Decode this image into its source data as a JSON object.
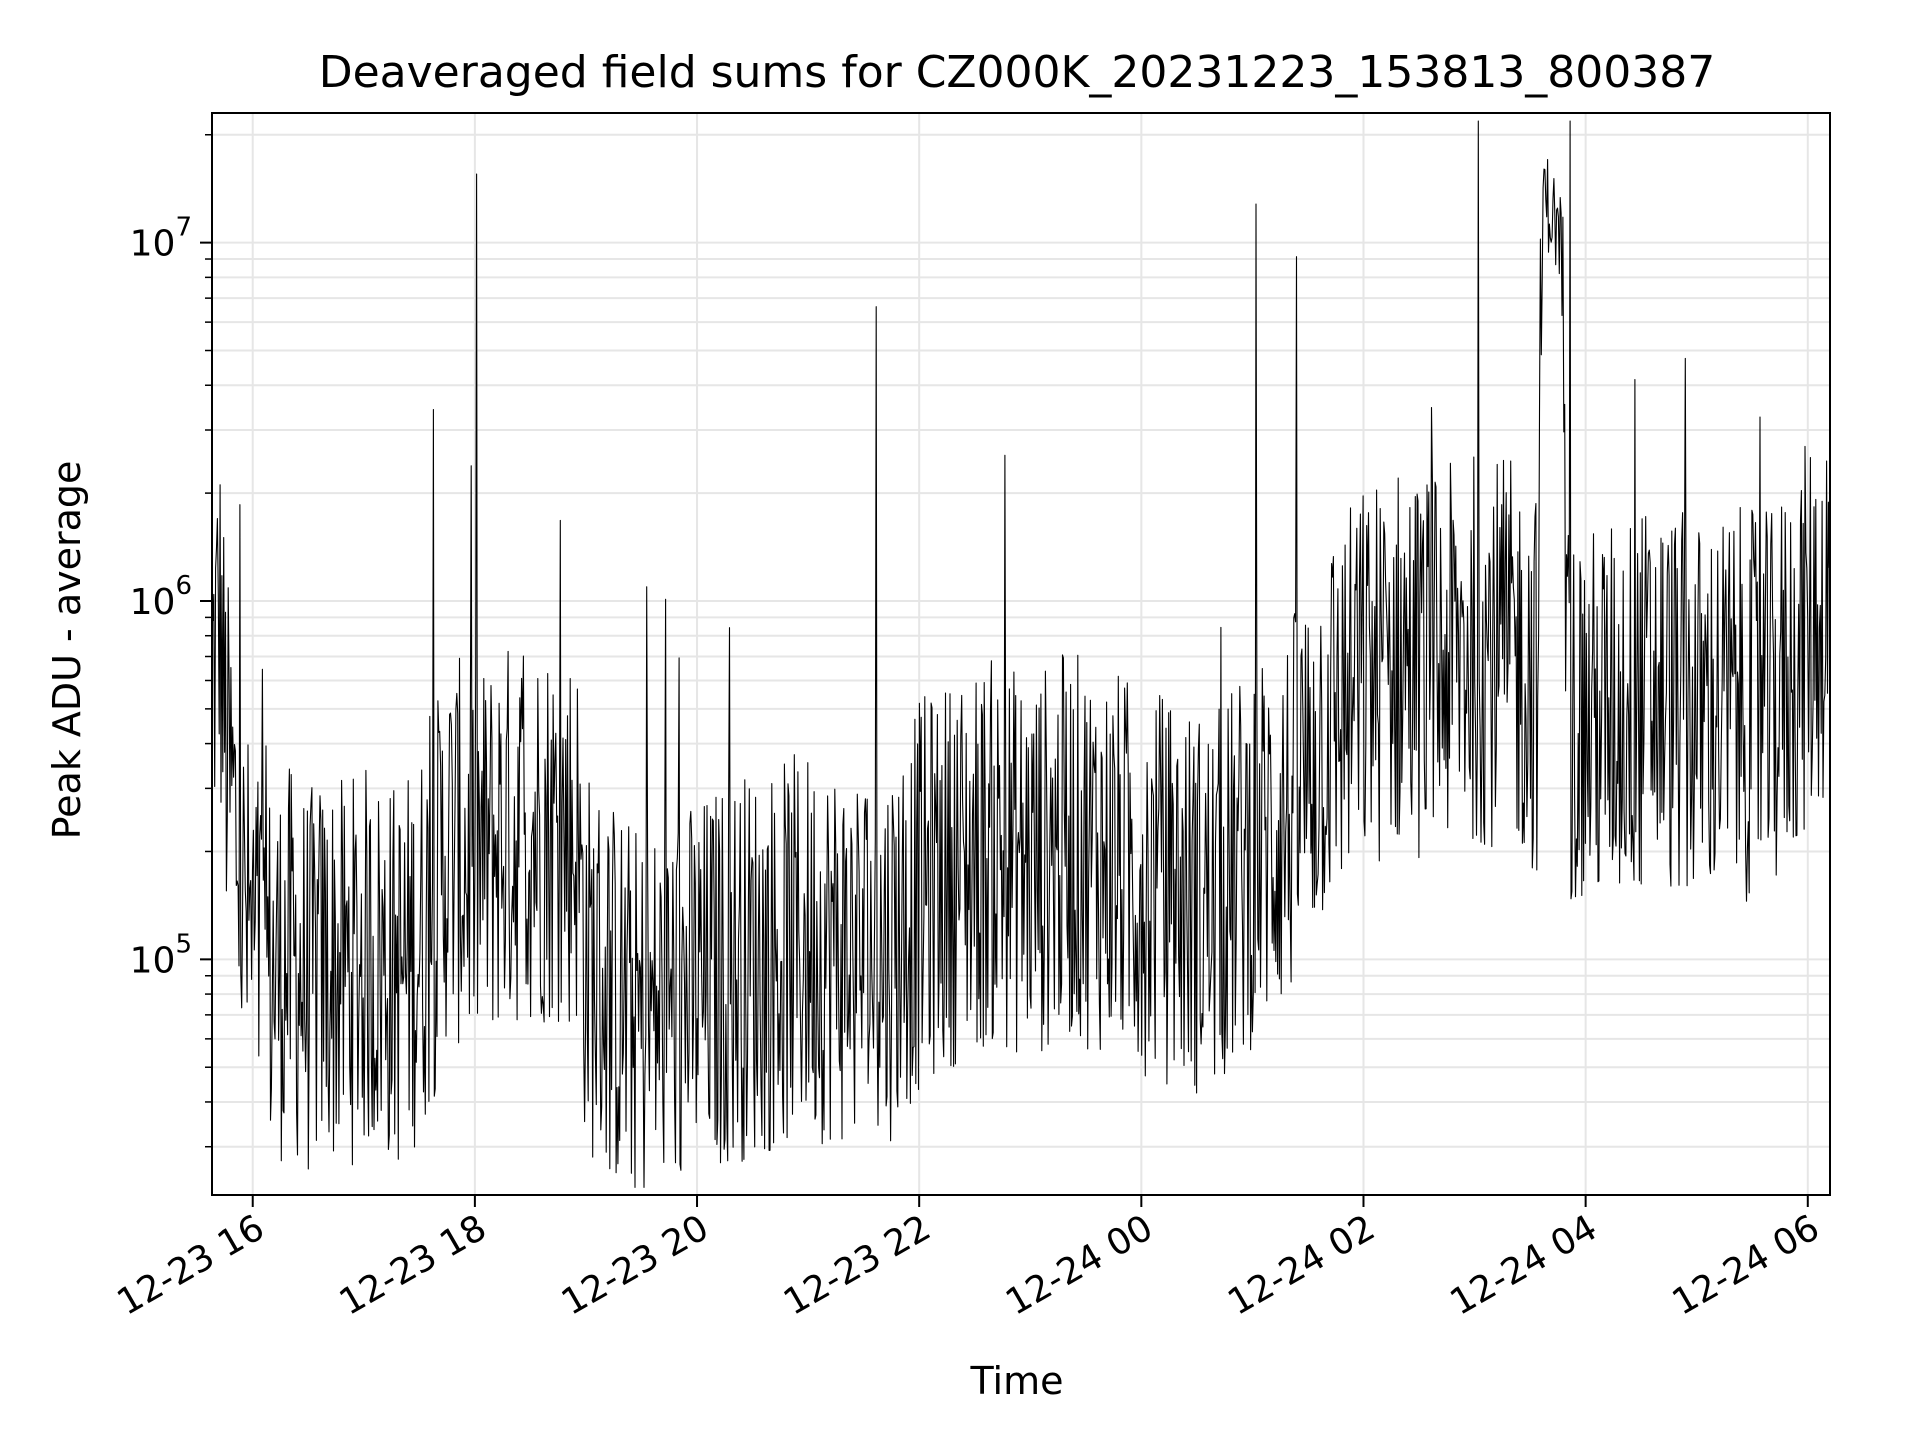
{
  "chart_data": {
    "type": "line",
    "title": "Deaveraged field sums for CZ000K_20231223_153813_800387",
    "xlabel": "Time",
    "ylabel": "Peak ADU - average",
    "yscale": "log",
    "xlim": [
      "2023-12-23 15:38",
      "2023-12-24 06:12"
    ],
    "ylim": [
      22000,
      23000000
    ],
    "grid": true,
    "line_color": "#000000",
    "x_ticks": [
      {
        "value": "2023-12-23 16:00",
        "label": "12-23 16"
      },
      {
        "value": "2023-12-23 18:00",
        "label": "12-23 18"
      },
      {
        "value": "2023-12-23 20:00",
        "label": "12-23 20"
      },
      {
        "value": "2023-12-23 22:00",
        "label": "12-23 22"
      },
      {
        "value": "2023-12-24 00:00",
        "label": "12-24 00"
      },
      {
        "value": "2023-12-24 02:00",
        "label": "12-24 02"
      },
      {
        "value": "2023-12-24 04:00",
        "label": "12-24 04"
      },
      {
        "value": "2023-12-24 06:00",
        "label": "12-24 06"
      }
    ],
    "y_ticks": [
      {
        "value": 100000,
        "base": "10",
        "exp": "5"
      },
      {
        "value": 1000000,
        "base": "10",
        "exp": "6"
      },
      {
        "value": 10000000,
        "base": "10",
        "exp": "7"
      }
    ],
    "series": [
      {
        "points": [
          [
            "2023-12-23 15:38",
            600000
          ],
          [
            "2023-12-23 15:42",
            900000
          ],
          [
            "2023-12-23 15:46",
            350000
          ],
          [
            "2023-12-23 15:50",
            250000
          ],
          [
            "2023-12-23 15:54",
            150000
          ],
          [
            "2023-12-23 16:00",
            110000
          ],
          [
            "2023-12-23 16:10",
            90000
          ],
          [
            "2023-12-23 16:20",
            100000
          ],
          [
            "2023-12-23 16:30",
            85000
          ],
          [
            "2023-12-23 16:40",
            95000
          ],
          [
            "2023-12-23 16:50",
            90000
          ],
          [
            "2023-12-23 17:00",
            100000
          ],
          [
            "2023-12-23 17:10",
            95000
          ],
          [
            "2023-12-23 17:20",
            90000
          ],
          [
            "2023-12-23 17:30",
            110000
          ],
          [
            "2023-12-23 17:38",
            140000
          ],
          [
            "2023-12-23 17:45",
            210000
          ],
          [
            "2023-12-23 18:00",
            180000
          ],
          [
            "2023-12-23 18:15",
            220000
          ],
          [
            "2023-12-23 18:30",
            230000
          ],
          [
            "2023-12-23 18:45",
            230000
          ],
          [
            "2023-12-23 18:55",
            220000
          ],
          [
            "2023-12-23 19:00",
            100000
          ],
          [
            "2023-12-23 19:15",
            80000
          ],
          [
            "2023-12-23 19:30",
            65000
          ],
          [
            "2023-12-23 19:45",
            75000
          ],
          [
            "2023-12-23 20:00",
            80000
          ],
          [
            "2023-12-23 20:20",
            95000
          ],
          [
            "2023-12-23 20:40",
            100000
          ],
          [
            "2023-12-23 21:00",
            110000
          ],
          [
            "2023-12-23 21:20",
            105000
          ],
          [
            "2023-12-23 21:40",
            100000
          ],
          [
            "2023-12-23 22:00",
            150000
          ],
          [
            "2023-12-23 22:20",
            180000
          ],
          [
            "2023-12-23 22:40",
            200000
          ],
          [
            "2023-12-23 23:00",
            180000
          ],
          [
            "2023-12-23 23:20",
            210000
          ],
          [
            "2023-12-23 23:40",
            190000
          ],
          [
            "2023-12-24 00:00",
            170000
          ],
          [
            "2023-12-24 00:20",
            150000
          ],
          [
            "2023-12-24 00:40",
            140000
          ],
          [
            "2023-12-24 01:00",
            200000
          ],
          [
            "2023-12-24 01:20",
            250000
          ],
          [
            "2023-12-24 01:40",
            450000
          ],
          [
            "2023-12-24 02:00",
            600000
          ],
          [
            "2023-12-24 02:20",
            700000
          ],
          [
            "2023-12-24 02:40",
            650000
          ],
          [
            "2023-12-24 03:00",
            750000
          ],
          [
            "2023-12-24 03:20",
            700000
          ],
          [
            "2023-12-24 03:34",
            600000
          ],
          [
            "2023-12-24 03:37",
            14000000
          ],
          [
            "2023-12-24 03:42",
            12000000
          ],
          [
            "2023-12-24 03:47",
            10000000
          ],
          [
            "2023-12-24 03:50",
            500000
          ],
          [
            "2023-12-24 04:00",
            450000
          ],
          [
            "2023-12-24 04:20",
            500000
          ],
          [
            "2023-12-24 04:40",
            550000
          ],
          [
            "2023-12-24 05:00",
            480000
          ],
          [
            "2023-12-24 05:20",
            520000
          ],
          [
            "2023-12-24 05:40",
            500000
          ],
          [
            "2023-12-24 06:00",
            800000
          ],
          [
            "2023-12-24 06:12",
            1000000
          ]
        ]
      }
    ]
  }
}
